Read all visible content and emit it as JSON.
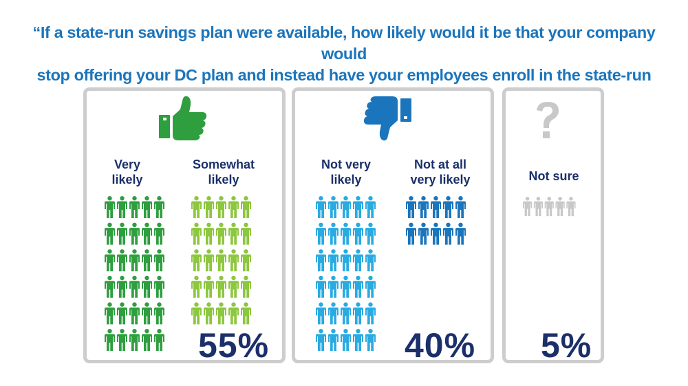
{
  "title": {
    "line1": "“If a state-run savings plan were available, how likely would it be that your company would",
    "line2": "stop offering your DC plan and instead have your employees enroll in the state-run plan?”"
  },
  "icons": {
    "panel1": "thumbs-up-icon",
    "panel2": "thumbs-down-icon",
    "panel3": "question-mark-icon"
  },
  "colors": {
    "very_likely": "#2e9e3f",
    "somewhat_likely": "#8dc63f",
    "not_very_likely": "#29abe2",
    "not_at_all": "#1b75bc",
    "not_sure": "#c8c8c8",
    "text_dark": "#1b2f6b",
    "title": "#1b75bc",
    "border": "#cdcdcd"
  },
  "chart_data": {
    "type": "pictograph",
    "title": "“If a state-run savings plan were available, how likely would it be that your company would stop offering your DC plan and instead have your employees enroll in the state-run plan?”",
    "groups": [
      {
        "icon": "thumbs-up-icon",
        "total_label": "55%",
        "total": 55,
        "categories": [
          {
            "label_lines": [
              "Very",
              "likely"
            ],
            "people": 30
          },
          {
            "label_lines": [
              "Somewhat",
              "likely"
            ],
            "people": 25
          }
        ]
      },
      {
        "icon": "thumbs-down-icon",
        "total_label": "40%",
        "total": 40,
        "categories": [
          {
            "label_lines": [
              "Not very",
              "likely"
            ],
            "people": 30
          },
          {
            "label_lines": [
              "Not at all",
              "very likely"
            ],
            "people": 10
          }
        ]
      },
      {
        "icon": "question-mark-icon",
        "total_label": "5%",
        "total": 5,
        "categories": [
          {
            "label_lines": [
              "Not sure"
            ],
            "people": 5
          }
        ]
      }
    ]
  }
}
